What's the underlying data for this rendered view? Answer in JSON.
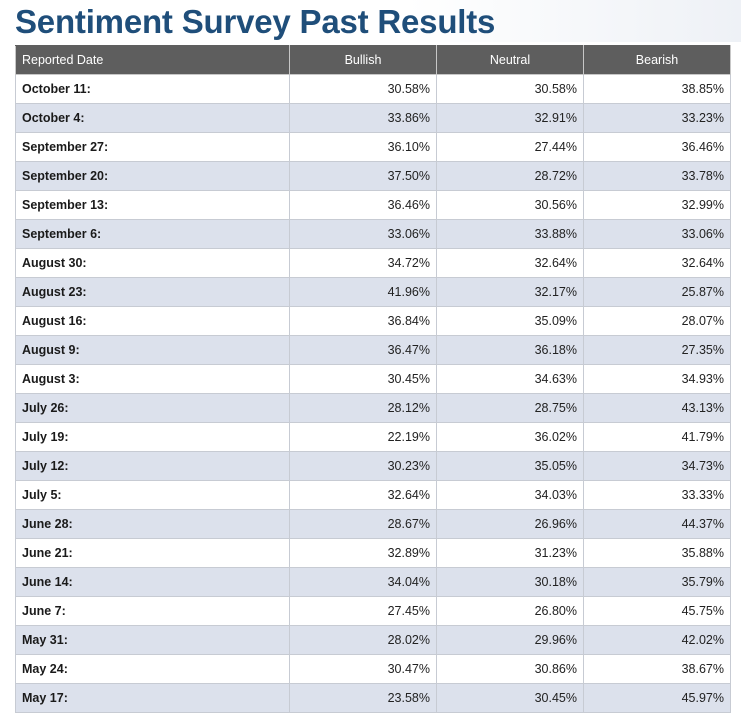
{
  "page": {
    "title": "Sentiment Survey Past Results"
  },
  "table": {
    "columns": [
      "Reported Date",
      "Bullish",
      "Neutral",
      "Bearish"
    ],
    "rows": [
      {
        "date": "October 11:",
        "bullish": "30.58%",
        "neutral": "30.58%",
        "bearish": "38.85%"
      },
      {
        "date": "October 4:",
        "bullish": "33.86%",
        "neutral": "32.91%",
        "bearish": "33.23%"
      },
      {
        "date": "September 27:",
        "bullish": "36.10%",
        "neutral": "27.44%",
        "bearish": "36.46%"
      },
      {
        "date": "September 20:",
        "bullish": "37.50%",
        "neutral": "28.72%",
        "bearish": "33.78%"
      },
      {
        "date": "September 13:",
        "bullish": "36.46%",
        "neutral": "30.56%",
        "bearish": "32.99%"
      },
      {
        "date": "September 6:",
        "bullish": "33.06%",
        "neutral": "33.88%",
        "bearish": "33.06%"
      },
      {
        "date": "August 30:",
        "bullish": "34.72%",
        "neutral": "32.64%",
        "bearish": "32.64%"
      },
      {
        "date": "August 23:",
        "bullish": "41.96%",
        "neutral": "32.17%",
        "bearish": "25.87%"
      },
      {
        "date": "August 16:",
        "bullish": "36.84%",
        "neutral": "35.09%",
        "bearish": "28.07%"
      },
      {
        "date": "August 9:",
        "bullish": "36.47%",
        "neutral": "36.18%",
        "bearish": "27.35%"
      },
      {
        "date": "August 3:",
        "bullish": "30.45%",
        "neutral": "34.63%",
        "bearish": "34.93%"
      },
      {
        "date": "July 26:",
        "bullish": "28.12%",
        "neutral": "28.75%",
        "bearish": "43.13%"
      },
      {
        "date": "July 19:",
        "bullish": "22.19%",
        "neutral": "36.02%",
        "bearish": "41.79%"
      },
      {
        "date": "July 12:",
        "bullish": "30.23%",
        "neutral": "35.05%",
        "bearish": "34.73%"
      },
      {
        "date": "July 5:",
        "bullish": "32.64%",
        "neutral": "34.03%",
        "bearish": "33.33%"
      },
      {
        "date": "June 28:",
        "bullish": "28.67%",
        "neutral": "26.96%",
        "bearish": "44.37%"
      },
      {
        "date": "June 21:",
        "bullish": "32.89%",
        "neutral": "31.23%",
        "bearish": "35.88%"
      },
      {
        "date": "June 14:",
        "bullish": "34.04%",
        "neutral": "30.18%",
        "bearish": "35.79%"
      },
      {
        "date": "June 7:",
        "bullish": "27.45%",
        "neutral": "26.80%",
        "bearish": "45.75%"
      },
      {
        "date": "May 31:",
        "bullish": "28.02%",
        "neutral": "29.96%",
        "bearish": "42.02%"
      },
      {
        "date": "May 24:",
        "bullish": "30.47%",
        "neutral": "30.86%",
        "bearish": "38.67%"
      },
      {
        "date": "May 17:",
        "bullish": "23.58%",
        "neutral": "30.45%",
        "bearish": "45.97%"
      }
    ]
  }
}
